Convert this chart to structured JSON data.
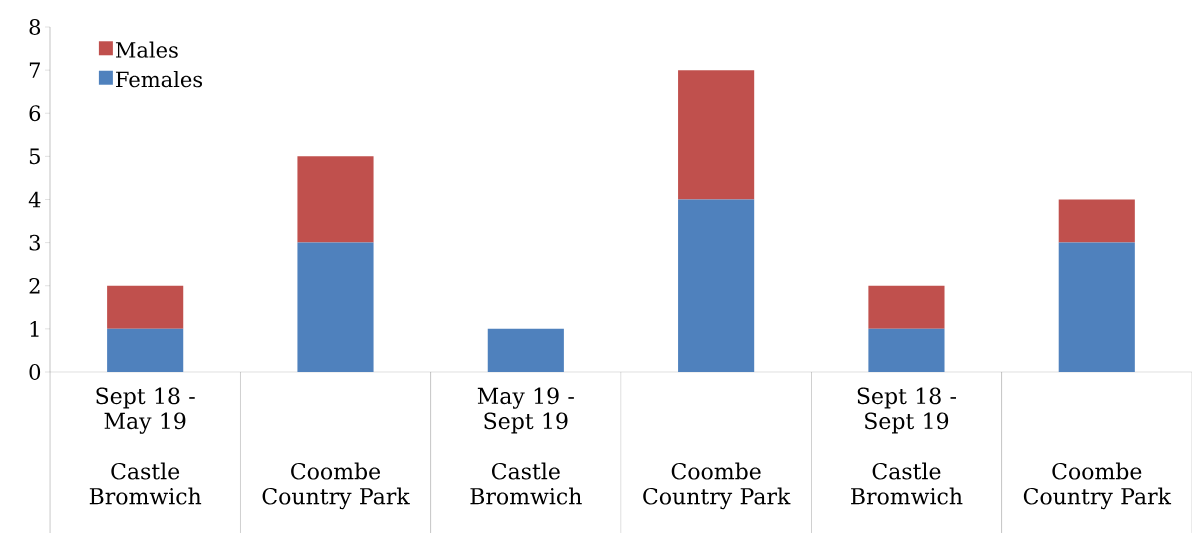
{
  "chart_data": {
    "type": "bar",
    "stacked": true,
    "categories": [
      "Castle Bromwich",
      "Coombe Country Park",
      "Castle Bromwich",
      "Coombe Country Park",
      "Castle Bromwich",
      "Coombe Country Park"
    ],
    "series": [
      {
        "name": "Females",
        "color": "#4f81bd",
        "values": [
          1,
          3,
          1,
          4,
          1,
          3
        ]
      },
      {
        "name": "Males",
        "color": "#c0504d",
        "values": [
          1,
          2,
          null,
          3,
          1,
          1
        ]
      }
    ],
    "ylim": [
      0,
      8
    ],
    "yticks": [
      0,
      1,
      2,
      3,
      4,
      5,
      6,
      7,
      8
    ],
    "legend": "top left",
    "annotations": [
      "Sept 18 - May 19",
      "May 19 - Sept 19",
      "Sept 18 - Sept 19"
    ]
  }
}
